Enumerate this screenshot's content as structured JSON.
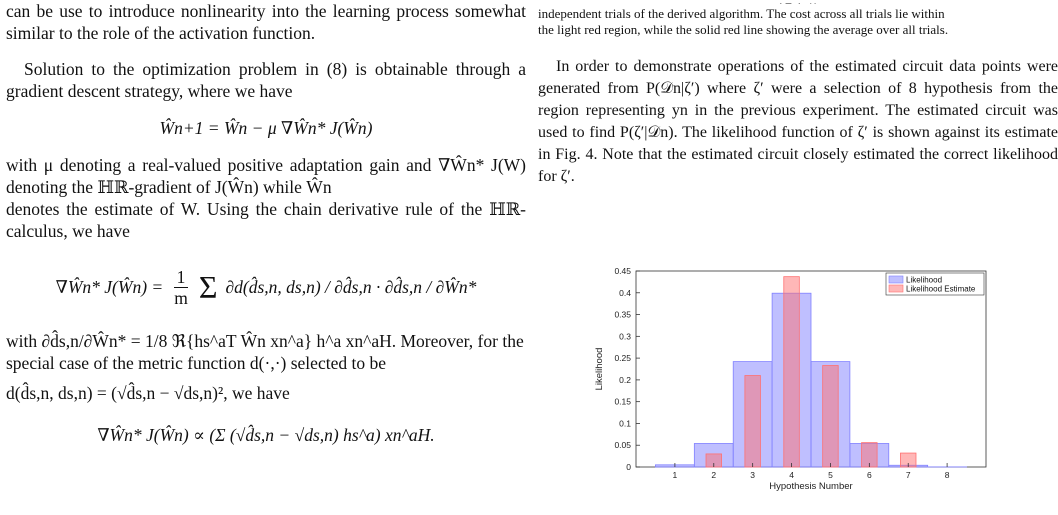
{
  "left": {
    "p1": "can be use to introduce nonlinearity into the learning process somewhat similar to the role of the activation function.",
    "p2": "Solution to the optimization problem in (8) is obtainable through a gradient descent strategy, where we have",
    "eq1": "Ŵn+1 = Ŵn − μ ∇Ŵn* J(Ŵn)",
    "p3a": "with μ denoting a real-valued positive adaptation gain and ∇Ŵn* J(W) denoting the ℍℝ-gradient of J(Ŵn) while Ŵn",
    "p3b": "denotes the estimate of W. Using the chain derivative rule of the ℍℝ-calculus, we have",
    "eq2_lhs": "∇Ŵn* J(Ŵn) =",
    "eq2_rhs": "∂d(d̂s,n, ds,n) / ∂d̂s,n · ∂d̂s,n / ∂Ŵn*",
    "p4a": "with ∂d̂s,n/∂Ŵn* = 1/8 ℜ{hs^aT Ŵn xn^a} h^a xn^aH. Moreover, for the",
    "p4b": "special case of the metric function d(·,·) selected to be",
    "p4c": "d(d̂s,n, ds,n) = (√d̂s,n − √ds,n)², we have",
    "eq3": "∇Ŵn* J(Ŵn) ∝ (Σ (√d̂s,n − √ds,n) hs^a) xn^aH."
  },
  "right": {
    "cap_top": "( Σ (  , ))",
    "cap1": "independent trials of the derived algorithm. The cost across all trials lie within",
    "cap2": "the light red region, while the solid red line showing the average over all trials.",
    "p1": "In order to demonstrate operations of the estimated circuit data points were generated from P(𝒟n|ζ′) where ζ′ were a selection of 8 hypothesis from the region representing yn in the previous experiment. The estimated circuit was used to find P(ζ′|𝒟n). The likelihood function of ζ′ is shown against its estimate in Fig. 4. Note that the estimated circuit closely estimated the correct likelihood for ζ′."
  },
  "chart_data": {
    "type": "bar",
    "xlabel": "Hypothesis Number",
    "ylabel": "Likelihood",
    "ylim": [
      0,
      0.45
    ],
    "xlim": [
      0,
      9
    ],
    "x_ticks": [
      1,
      2,
      3,
      4,
      5,
      6,
      7,
      8
    ],
    "y_ticks": [
      0,
      0.05,
      0.1,
      0.15,
      0.2,
      0.25,
      0.3,
      0.35,
      0.4,
      0.45
    ],
    "legend_position": "top-right",
    "series": [
      {
        "name": "Likelihood",
        "color": "#8080ff",
        "opacity": 0.5,
        "bar_width": 1.0,
        "x": [
          1,
          2,
          3,
          4,
          5,
          6,
          7,
          8
        ],
        "values": [
          0.005,
          0.054,
          0.242,
          0.399,
          0.242,
          0.054,
          0.004,
          0.0002
        ]
      },
      {
        "name": "Likelihood Estimate",
        "color": "#ff7070",
        "opacity": 0.5,
        "bar_width": 0.4,
        "x": [
          1,
          2,
          3,
          4,
          5,
          6,
          7,
          8
        ],
        "values": [
          0.0,
          0.03,
          0.21,
          0.437,
          0.233,
          0.056,
          0.032,
          0.0
        ]
      }
    ]
  }
}
